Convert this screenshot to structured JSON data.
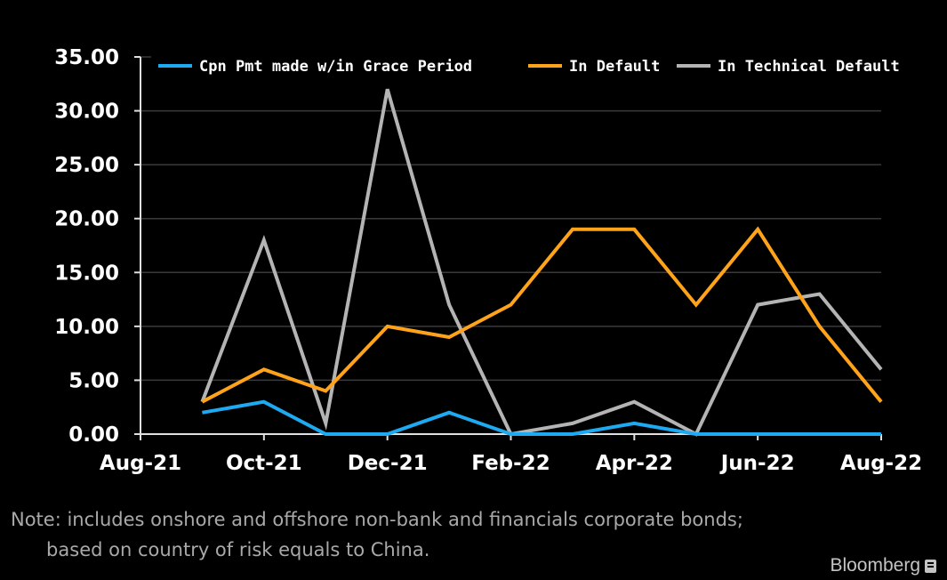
{
  "chart_data": {
    "type": "line",
    "x": [
      "Sep-21",
      "Oct-21",
      "Nov-21",
      "Dec-21",
      "Jan-22",
      "Feb-22",
      "Mar-22",
      "Apr-22",
      "May-22",
      "Jun-22",
      "Jul-22",
      "Aug-22"
    ],
    "x_ticks": [
      "Aug-21",
      "Oct-21",
      "Dec-21",
      "Feb-22",
      "Apr-22",
      "Jun-22",
      "Aug-22"
    ],
    "y_ticks": [
      "0.00",
      "5.00",
      "10.00",
      "15.00",
      "20.00",
      "25.00",
      "30.00",
      "35.00"
    ],
    "ylim": [
      0,
      35
    ],
    "x_axis_range": [
      "Aug-21",
      "Aug-22"
    ],
    "grid": "horizontal",
    "legend_position": "top",
    "series": [
      {
        "name": "Cpn Pmt made w/in Grace Period",
        "color": "#1eaaf1",
        "values": [
          2,
          3,
          0,
          0,
          2,
          0,
          0,
          1,
          0,
          0,
          0,
          0
        ]
      },
      {
        "name": "In Default",
        "color": "#ffa31a",
        "values": [
          3,
          6,
          4,
          10,
          9,
          12,
          19,
          19,
          12,
          19,
          10,
          3
        ]
      },
      {
        "name": "In Technical Default",
        "color": "#b4b4b4",
        "values": [
          3,
          18,
          1,
          32,
          12,
          0,
          1,
          3,
          0,
          12,
          13,
          6
        ]
      }
    ],
    "title": "",
    "xlabel": "",
    "ylabel": ""
  },
  "footer": {
    "note": "Note: includes onshore and offshore non-bank and financials corporate bonds;\n      based on country of risk equals to China.",
    "brand": "Bloomberg"
  }
}
